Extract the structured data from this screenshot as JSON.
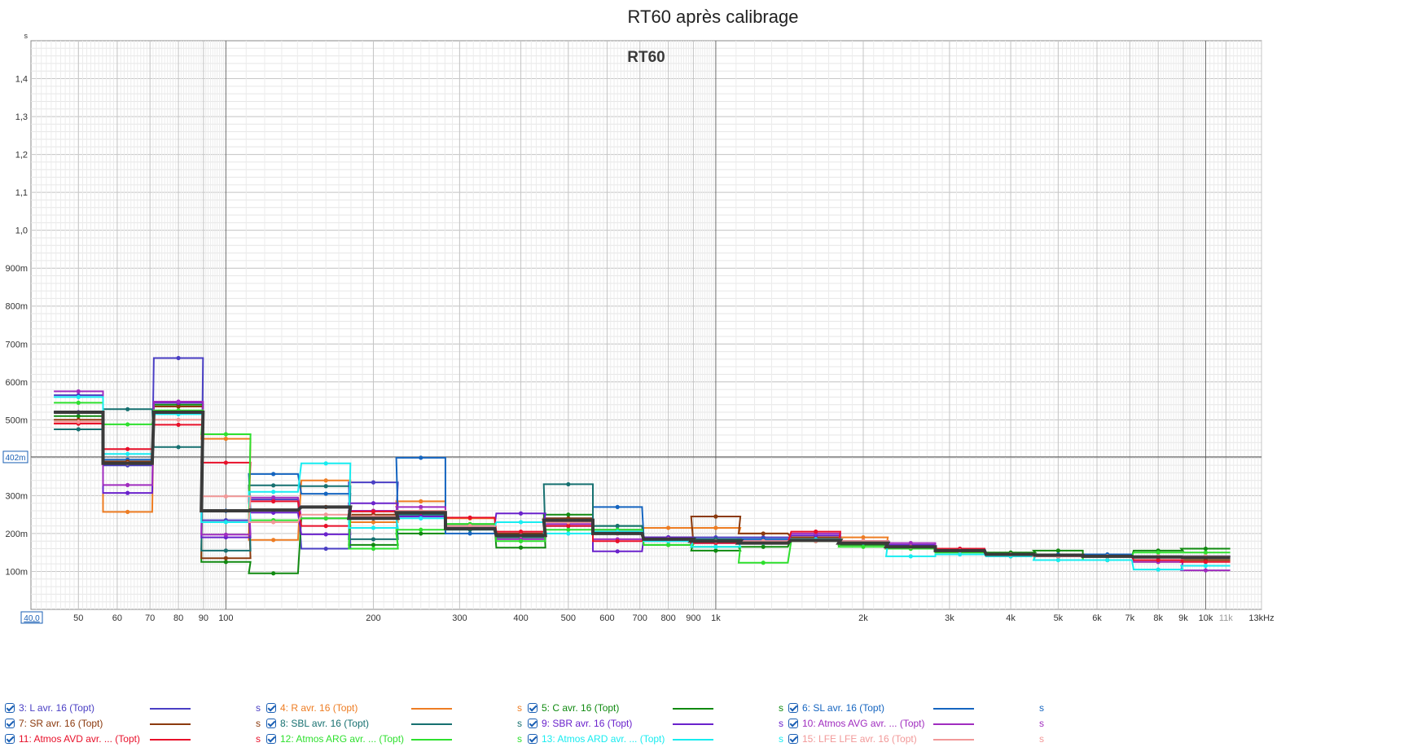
{
  "title": "RT60 après calibrage",
  "chart_data": {
    "type": "line",
    "title": "RT60",
    "ylabel": "s",
    "xlabel": "",
    "x_scale": "log",
    "xlim": [
      40,
      13000
    ],
    "ylim": [
      0,
      1.5
    ],
    "cursor": {
      "x_label": "40,0",
      "y_label": "402m",
      "y": 0.402
    },
    "x_ticks": [
      {
        "v": 50,
        "l": "50"
      },
      {
        "v": 60,
        "l": "60"
      },
      {
        "v": 70,
        "l": "70"
      },
      {
        "v": 80,
        "l": "80"
      },
      {
        "v": 90,
        "l": "90"
      },
      {
        "v": 100,
        "l": "100"
      },
      {
        "v": 200,
        "l": "200"
      },
      {
        "v": 300,
        "l": "300"
      },
      {
        "v": 400,
        "l": "400"
      },
      {
        "v": 500,
        "l": "500"
      },
      {
        "v": 600,
        "l": "600"
      },
      {
        "v": 700,
        "l": "700"
      },
      {
        "v": 800,
        "l": "800"
      },
      {
        "v": 900,
        "l": "900"
      },
      {
        "v": 1000,
        "l": "1k"
      },
      {
        "v": 2000,
        "l": "2k"
      },
      {
        "v": 3000,
        "l": "3k"
      },
      {
        "v": 4000,
        "l": "4k"
      },
      {
        "v": 5000,
        "l": "5k"
      },
      {
        "v": 6000,
        "l": "6k"
      },
      {
        "v": 7000,
        "l": "7k"
      },
      {
        "v": 8000,
        "l": "8k"
      },
      {
        "v": 9000,
        "l": "9k"
      },
      {
        "v": 10000,
        "l": "10k"
      },
      {
        "v": 11000,
        "l": "11k",
        "grey": true
      },
      {
        "v": 13000,
        "l": "13kHz"
      }
    ],
    "y_ticks": [
      {
        "v": 0.1,
        "l": "100m"
      },
      {
        "v": 0.2,
        "l": "200m"
      },
      {
        "v": 0.3,
        "l": "300m"
      },
      {
        "v": 0.5,
        "l": "500m"
      },
      {
        "v": 0.6,
        "l": "600m"
      },
      {
        "v": 0.7,
        "l": "700m"
      },
      {
        "v": 0.8,
        "l": "800m"
      },
      {
        "v": 0.9,
        "l": "900m"
      },
      {
        "v": 1.0,
        "l": "1,0"
      },
      {
        "v": 1.1,
        "l": "1,1"
      },
      {
        "v": 1.2,
        "l": "1,2"
      },
      {
        "v": 1.3,
        "l": "1,3"
      },
      {
        "v": 1.4,
        "l": "1,4"
      }
    ],
    "bands_hz": [
      50,
      63,
      80,
      100,
      125,
      160,
      200,
      250,
      315,
      400,
      500,
      630,
      800,
      1000,
      1250,
      1600,
      2000,
      2500,
      3150,
      4000,
      5000,
      6300,
      8000,
      10000
    ],
    "average": {
      "color": "#3a3a3a",
      "values": [
        0.52,
        0.385,
        0.52,
        0.26,
        0.262,
        0.27,
        0.24,
        0.255,
        0.213,
        0.195,
        0.235,
        0.2,
        0.185,
        0.18,
        0.175,
        0.182,
        0.175,
        0.165,
        0.155,
        0.145,
        0.143,
        0.14,
        0.138,
        0.137
      ]
    },
    "series": [
      {
        "name": "3: L avr. 16 (Topt)",
        "color": "#4a3fc4",
        "values": [
          0.565,
          0.38,
          0.663,
          0.235,
          0.29,
          0.16,
          0.335,
          0.25,
          0.22,
          0.2,
          0.24,
          0.21,
          0.19,
          0.19,
          0.19,
          0.19,
          0.18,
          0.17,
          0.155,
          0.145,
          0.14,
          0.14,
          0.14,
          0.14
        ]
      },
      {
        "name": "4: R avr. 16 (Topt)",
        "color": "#ee7d23",
        "values": [
          0.49,
          0.257,
          0.535,
          0.45,
          0.183,
          0.34,
          0.23,
          0.285,
          0.24,
          0.19,
          0.23,
          0.2,
          0.215,
          0.215,
          0.2,
          0.19,
          0.19,
          0.165,
          0.155,
          0.145,
          0.14,
          0.13,
          0.125,
          0.13
        ]
      },
      {
        "name": "5: C avr. 16 (Topt)",
        "color": "#108a10",
        "values": [
          0.51,
          0.385,
          0.54,
          0.125,
          0.095,
          0.24,
          0.17,
          0.2,
          0.225,
          0.163,
          0.25,
          0.22,
          0.17,
          0.155,
          0.165,
          0.185,
          0.17,
          0.16,
          0.155,
          0.15,
          0.155,
          0.14,
          0.155,
          0.16
        ]
      },
      {
        "name": "6: SL avr. 16 (Topt)",
        "color": "#1565c0",
        "values": [
          0.52,
          0.395,
          0.52,
          0.26,
          0.357,
          0.305,
          0.24,
          0.4,
          0.2,
          0.195,
          0.22,
          0.27,
          0.19,
          0.18,
          0.185,
          0.185,
          0.175,
          0.165,
          0.155,
          0.145,
          0.145,
          0.145,
          0.14,
          0.14
        ]
      },
      {
        "name": "7: SR avr. 16 (Topt)",
        "color": "#8b3a0e",
        "values": [
          0.5,
          0.39,
          0.535,
          0.135,
          0.26,
          0.27,
          0.25,
          0.26,
          0.215,
          0.2,
          0.24,
          0.2,
          0.19,
          0.245,
          0.2,
          0.19,
          0.18,
          0.165,
          0.155,
          0.14,
          0.14,
          0.13,
          0.13,
          0.13
        ]
      },
      {
        "name": "8: SBL avr. 16 (Topt)",
        "color": "#167070",
        "values": [
          0.475,
          0.528,
          0.428,
          0.155,
          0.327,
          0.325,
          0.185,
          0.25,
          0.21,
          0.19,
          0.33,
          0.22,
          0.19,
          0.185,
          0.18,
          0.18,
          0.175,
          0.165,
          0.155,
          0.145,
          0.14,
          0.14,
          0.14,
          0.14
        ]
      },
      {
        "name": "9: SBR avr. 16 (Topt)",
        "color": "#6a22cc",
        "values": [
          0.52,
          0.307,
          0.545,
          0.19,
          0.255,
          0.198,
          0.28,
          0.245,
          0.22,
          0.253,
          0.22,
          0.153,
          0.19,
          0.175,
          0.18,
          0.195,
          0.175,
          0.17,
          0.16,
          0.145,
          0.14,
          0.14,
          0.14,
          0.14
        ]
      },
      {
        "name": "10: Atmos AVG avr. ... (Topt)",
        "color": "#a02cbf",
        "values": [
          0.575,
          0.328,
          0.548,
          0.197,
          0.295,
          0.24,
          0.26,
          0.27,
          0.22,
          0.185,
          0.225,
          0.185,
          0.18,
          0.175,
          0.18,
          0.2,
          0.18,
          0.175,
          0.16,
          0.145,
          0.14,
          0.14,
          0.125,
          0.103
        ]
      },
      {
        "name": "11: Atmos AVD avr. ... (Topt)",
        "color": "#e8102a",
        "values": [
          0.49,
          0.423,
          0.487,
          0.387,
          0.285,
          0.22,
          0.258,
          0.255,
          0.242,
          0.205,
          0.22,
          0.18,
          0.185,
          0.175,
          0.175,
          0.205,
          0.175,
          0.165,
          0.16,
          0.145,
          0.14,
          0.14,
          0.13,
          0.125
        ]
      },
      {
        "name": "12: Atmos ARG avr. ... (Topt)",
        "color": "#2ee02e",
        "values": [
          0.545,
          0.488,
          0.525,
          0.462,
          0.235,
          0.24,
          0.16,
          0.21,
          0.225,
          0.18,
          0.21,
          0.21,
          0.17,
          0.165,
          0.123,
          0.18,
          0.165,
          0.16,
          0.15,
          0.145,
          0.13,
          0.14,
          0.15,
          0.15
        ]
      },
      {
        "name": "13: Atmos ARD avr. ... (Topt)",
        "color": "#18ecf0",
        "values": [
          0.56,
          0.41,
          0.515,
          0.23,
          0.31,
          0.385,
          0.215,
          0.24,
          0.215,
          0.23,
          0.2,
          0.205,
          0.18,
          0.165,
          0.175,
          0.185,
          0.175,
          0.14,
          0.145,
          0.14,
          0.13,
          0.13,
          0.105,
          0.115
        ]
      },
      {
        "name": "15: LFE LFE avr. 16 (Topt)",
        "color": "#f29898",
        "values": [
          0.495,
          0.385,
          0.5,
          0.298,
          0.23,
          0.25,
          0.245,
          0.26,
          0.22,
          0.195,
          0.23,
          0.2,
          0.185,
          0.18,
          0.18,
          0.18,
          0.18,
          0.165,
          0.155,
          0.145,
          0.14,
          0.14,
          0.14,
          0.14
        ]
      }
    ]
  },
  "legend": {
    "unit": "s"
  }
}
